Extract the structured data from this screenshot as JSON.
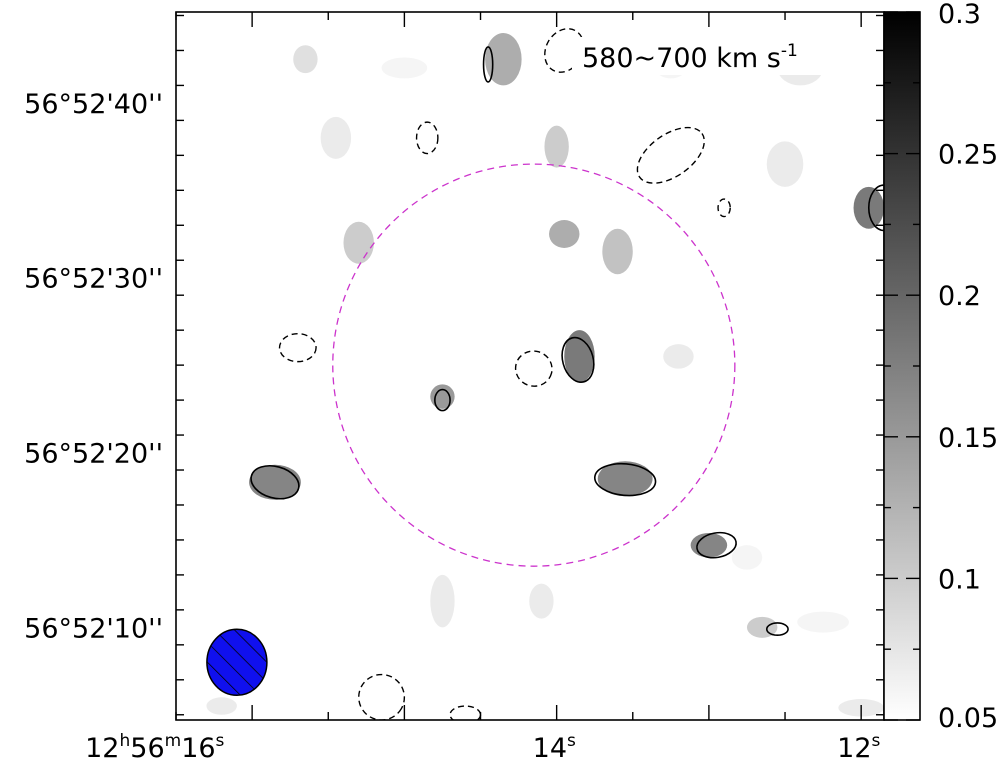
{
  "chart_data": {
    "type": "heatmap",
    "title": "580~700 km s",
    "title_sup": "-1",
    "x_ticks": [
      {
        "ra_sec": 16,
        "label": "12",
        "h": "h",
        "label2": "56",
        "m": "m",
        "label3": "16",
        "s": "s"
      },
      {
        "ra_sec": 14,
        "label": "14",
        "s": "s"
      },
      {
        "ra_sec": 12,
        "label": "12",
        "s": "s"
      }
    ],
    "x_range_sec": [
      16.5,
      11.85
    ],
    "y_ticks": [
      {
        "dec_arcsec": 40,
        "label": "56°52'40''"
      },
      {
        "dec_arcsec": 30,
        "label": "56°52'30''"
      },
      {
        "dec_arcsec": 20,
        "label": "56°52'20''"
      },
      {
        "dec_arcsec": 10,
        "label": "56°52'10''"
      }
    ],
    "y_range_arcsec": [
      4.7,
      45.2
    ],
    "colorbar": {
      "min": 0.05,
      "max": 0.3,
      "ticks": [
        0.3,
        0.25,
        0.2,
        0.15,
        0.1,
        0.05
      ],
      "tick_labels": [
        "0.3",
        "0.25",
        "0.2",
        "0.15",
        "0.1",
        "0.05"
      ],
      "colors": [
        "#ffffff",
        "#000000"
      ]
    },
    "blobs": [
      {
        "ra": 15.65,
        "dec": 42.5,
        "rx": 0.08,
        "ry": 0.8,
        "v": 0.08
      },
      {
        "ra": 14.35,
        "dec": 42.5,
        "rx": 0.12,
        "ry": 1.5,
        "v": 0.13
      },
      {
        "ra": 15.0,
        "dec": 42.0,
        "rx": 0.15,
        "ry": 0.6,
        "v": 0.06
      },
      {
        "ra": 13.25,
        "dec": 42.0,
        "rx": 0.1,
        "ry": 0.6,
        "v": 0.06
      },
      {
        "ra": 12.4,
        "dec": 42.0,
        "rx": 0.15,
        "ry": 1.0,
        "v": 0.07
      },
      {
        "ra": 15.45,
        "dec": 38.0,
        "rx": 0.1,
        "ry": 1.2,
        "v": 0.07
      },
      {
        "ra": 14.0,
        "dec": 37.5,
        "rx": 0.08,
        "ry": 1.2,
        "v": 0.1
      },
      {
        "ra": 12.5,
        "dec": 36.5,
        "rx": 0.12,
        "ry": 1.3,
        "v": 0.07
      },
      {
        "ra": 11.95,
        "dec": 34.0,
        "rx": 0.1,
        "ry": 1.2,
        "v": 0.18
      },
      {
        "ra": 15.3,
        "dec": 32.0,
        "rx": 0.1,
        "ry": 1.2,
        "v": 0.1
      },
      {
        "ra": 13.95,
        "dec": 32.5,
        "rx": 0.1,
        "ry": 0.8,
        "v": 0.13
      },
      {
        "ra": 13.6,
        "dec": 31.5,
        "rx": 0.1,
        "ry": 1.3,
        "v": 0.11
      },
      {
        "ra": 13.85,
        "dec": 25.5,
        "rx": 0.1,
        "ry": 1.5,
        "v": 0.18
      },
      {
        "ra": 13.2,
        "dec": 25.5,
        "rx": 0.1,
        "ry": 0.7,
        "v": 0.07
      },
      {
        "ra": 14.75,
        "dec": 23.2,
        "rx": 0.08,
        "ry": 0.7,
        "v": 0.15
      },
      {
        "ra": 14.5,
        "dec": 22.5,
        "rx": 0.08,
        "ry": 0.6,
        "v": 0.05
      },
      {
        "ra": 15.85,
        "dec": 18.3,
        "rx": 0.17,
        "ry": 1.0,
        "v": 0.17
      },
      {
        "ra": 13.55,
        "dec": 18.5,
        "rx": 0.18,
        "ry": 1.0,
        "v": 0.17
      },
      {
        "ra": 13.0,
        "dec": 14.7,
        "rx": 0.12,
        "ry": 0.7,
        "v": 0.17
      },
      {
        "ra": 12.75,
        "dec": 14.0,
        "rx": 0.1,
        "ry": 0.7,
        "v": 0.06
      },
      {
        "ra": 14.75,
        "dec": 11.5,
        "rx": 0.08,
        "ry": 1.5,
        "v": 0.07
      },
      {
        "ra": 14.1,
        "dec": 11.5,
        "rx": 0.08,
        "ry": 1.0,
        "v": 0.07
      },
      {
        "ra": 12.65,
        "dec": 10.0,
        "rx": 0.1,
        "ry": 0.6,
        "v": 0.1
      },
      {
        "ra": 12.25,
        "dec": 10.3,
        "rx": 0.17,
        "ry": 0.6,
        "v": 0.06
      },
      {
        "ra": 16.2,
        "dec": 5.5,
        "rx": 0.1,
        "ry": 0.5,
        "v": 0.07
      },
      {
        "ra": 12.0,
        "dec": 5.4,
        "rx": 0.15,
        "ry": 0.5,
        "v": 0.07
      }
    ],
    "positive_contours": [
      {
        "ra": 14.45,
        "dec": 42.2,
        "rx": 0.03,
        "ry": 1.0,
        "rot": 0
      },
      {
        "ra": 13.86,
        "dec": 25.3,
        "rx": 0.1,
        "ry": 1.3,
        "rot": -15
      },
      {
        "ra": 14.75,
        "dec": 23.0,
        "rx": 0.05,
        "ry": 0.6,
        "rot": 0
      },
      {
        "ra": 15.85,
        "dec": 18.3,
        "rx": 0.16,
        "ry": 0.9,
        "rot": 15
      },
      {
        "ra": 13.55,
        "dec": 18.45,
        "rx": 0.2,
        "ry": 0.9,
        "rot": 5
      },
      {
        "ra": 12.95,
        "dec": 14.7,
        "rx": 0.13,
        "ry": 0.7,
        "rot": -10
      },
      {
        "ra": 12.55,
        "dec": 9.9,
        "rx": 0.07,
        "ry": 0.35,
        "rot": 0
      },
      {
        "ra": 11.85,
        "dec": 34.0,
        "rx": 0.1,
        "ry": 1.3,
        "rot": 0
      }
    ],
    "negative_contours": [
      {
        "ra": 13.95,
        "dec": 43.0,
        "rx": 0.12,
        "ry": 1.3,
        "rot": 30
      },
      {
        "ra": 14.85,
        "dec": 38.0,
        "rx": 0.07,
        "ry": 0.9,
        "rot": 0
      },
      {
        "ra": 13.25,
        "dec": 37.0,
        "rx": 0.25,
        "ry": 1.2,
        "rot": -35
      },
      {
        "ra": 12.9,
        "dec": 34.0,
        "rx": 0.04,
        "ry": 0.5,
        "rot": 0
      },
      {
        "ra": 15.7,
        "dec": 26.0,
        "rx": 0.12,
        "ry": 0.8,
        "rot": 0
      },
      {
        "ra": 14.15,
        "dec": 24.8,
        "rx": 0.12,
        "ry": 1.0,
        "rot": 15
      },
      {
        "ra": 15.15,
        "dec": 6.0,
        "rx": 0.15,
        "ry": 1.3,
        "rot": 30
      },
      {
        "ra": 14.6,
        "dec": 5.0,
        "rx": 0.1,
        "ry": 0.5,
        "rot": 0
      }
    ],
    "circle": {
      "ra": 14.15,
      "dec": 25.0,
      "radius_arcsec": 11.5,
      "color": "#cc33cc"
    },
    "beam": {
      "ra": 16.1,
      "dec": 8.0,
      "color": "#1010ee"
    }
  }
}
